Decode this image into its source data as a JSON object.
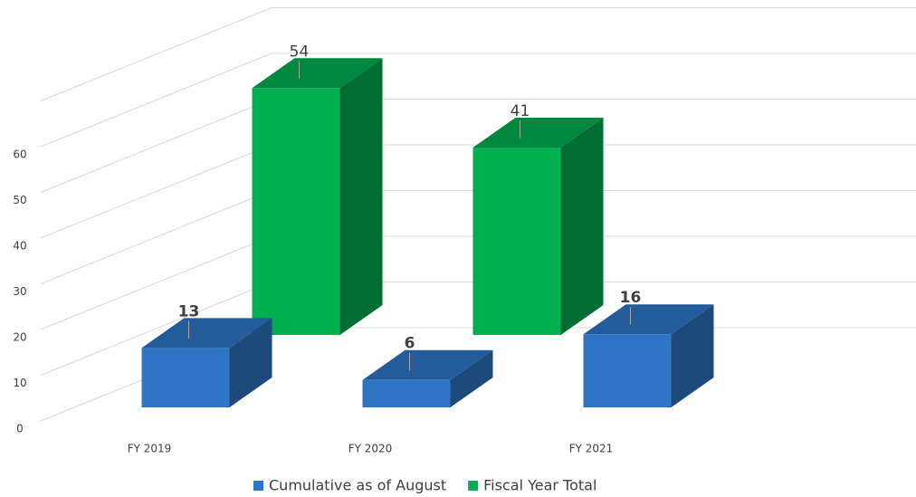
{
  "chart_data": {
    "type": "bar3d",
    "categories": [
      "FY 2019",
      "FY 2020",
      "FY 2021"
    ],
    "series": [
      {
        "name": "Cumulative as of August",
        "color": "#2e75c6",
        "values": [
          13,
          6,
          16
        ]
      },
      {
        "name": "Fiscal Year Total",
        "color": "#00b050",
        "values": [
          54,
          41,
          null
        ]
      }
    ],
    "ylim": [
      0,
      70
    ],
    "yticks": [
      0,
      10,
      20,
      30,
      40,
      50,
      60
    ],
    "grid": true,
    "legend": "bottom"
  }
}
